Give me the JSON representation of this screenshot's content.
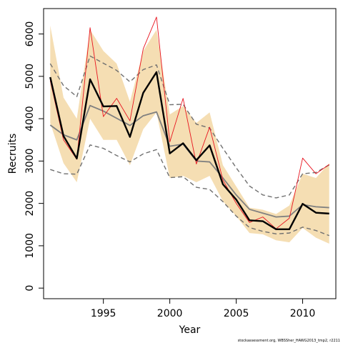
{
  "chart_data": {
    "type": "line",
    "title": "",
    "xlabel": "Year",
    "ylabel": "Recruits",
    "xlim": [
      1990.5,
      2012.5
    ],
    "ylim": [
      -250,
      6600
    ],
    "x_ticks": [
      1995,
      2000,
      2005,
      2010
    ],
    "y_ticks": [
      0,
      1000,
      2000,
      3000,
      4000,
      5000,
      6000
    ],
    "grid": false,
    "legend": "none",
    "footer": "stockassessment.org, WBSSher_HAWG2013_tmp2, r2211",
    "colors": {
      "band": "#f5deb3",
      "estimate": "#000000",
      "red": "#e8141f",
      "gray": "#808080",
      "dashed": "#707070"
    },
    "x": [
      1991,
      1992,
      1993,
      1994,
      1995,
      1996,
      1997,
      1998,
      1999,
      2000,
      2001,
      2002,
      2003,
      2004,
      2005,
      2006,
      2007,
      2008,
      2009,
      2010,
      2011,
      2012
    ],
    "band": {
      "upper": [
        6200,
        4500,
        4000,
        6100,
        5600,
        5300,
        4400,
        5600,
        6100,
        4100,
        4300,
        3900,
        4150,
        2900,
        2400,
        1900,
        1850,
        1750,
        1950,
        2700,
        2600,
        2950
      ],
      "lower": [
        3900,
        2950,
        2500,
        4000,
        3500,
        3500,
        2900,
        3750,
        4150,
        2600,
        2650,
        2500,
        2650,
        2050,
        1700,
        1300,
        1270,
        1130,
        1080,
        1420,
        1190,
        1050
      ]
    },
    "series": [
      {
        "style": "thick-black",
        "values": [
          4980,
          3590,
          3060,
          4930,
          4290,
          4300,
          3570,
          4610,
          5100,
          3180,
          3420,
          3020,
          3370,
          2450,
          2090,
          1600,
          1580,
          1390,
          1390,
          1990,
          1780,
          1760
        ]
      },
      {
        "style": "thin-red",
        "values": [
          4900,
          3500,
          3040,
          6150,
          4050,
          4480,
          3950,
          5650,
          6400,
          3450,
          4480,
          2930,
          3800,
          2550,
          2000,
          1550,
          1680,
          1400,
          1650,
          3070,
          2700,
          2920
        ]
      },
      {
        "style": "gray-solid",
        "values": [
          3850,
          3620,
          3500,
          4310,
          4180,
          4010,
          3840,
          4070,
          4160,
          3350,
          3400,
          3000,
          2980,
          2600,
          2200,
          1860,
          1770,
          1680,
          1700,
          1970,
          1920,
          1900
        ]
      },
      {
        "style": "gray-dashed-upper",
        "values": [
          5300,
          4780,
          4520,
          5480,
          5310,
          5140,
          4870,
          5160,
          5270,
          4330,
          4340,
          3870,
          3780,
          3300,
          2840,
          2410,
          2200,
          2130,
          2200,
          2700,
          2730,
          2910
        ]
      },
      {
        "style": "gray-dashed-lower",
        "values": [
          2800,
          2700,
          2690,
          3380,
          3300,
          3130,
          2980,
          3170,
          3270,
          2610,
          2630,
          2380,
          2330,
          2040,
          1700,
          1430,
          1340,
          1280,
          1300,
          1440,
          1360,
          1240
        ]
      }
    ]
  }
}
